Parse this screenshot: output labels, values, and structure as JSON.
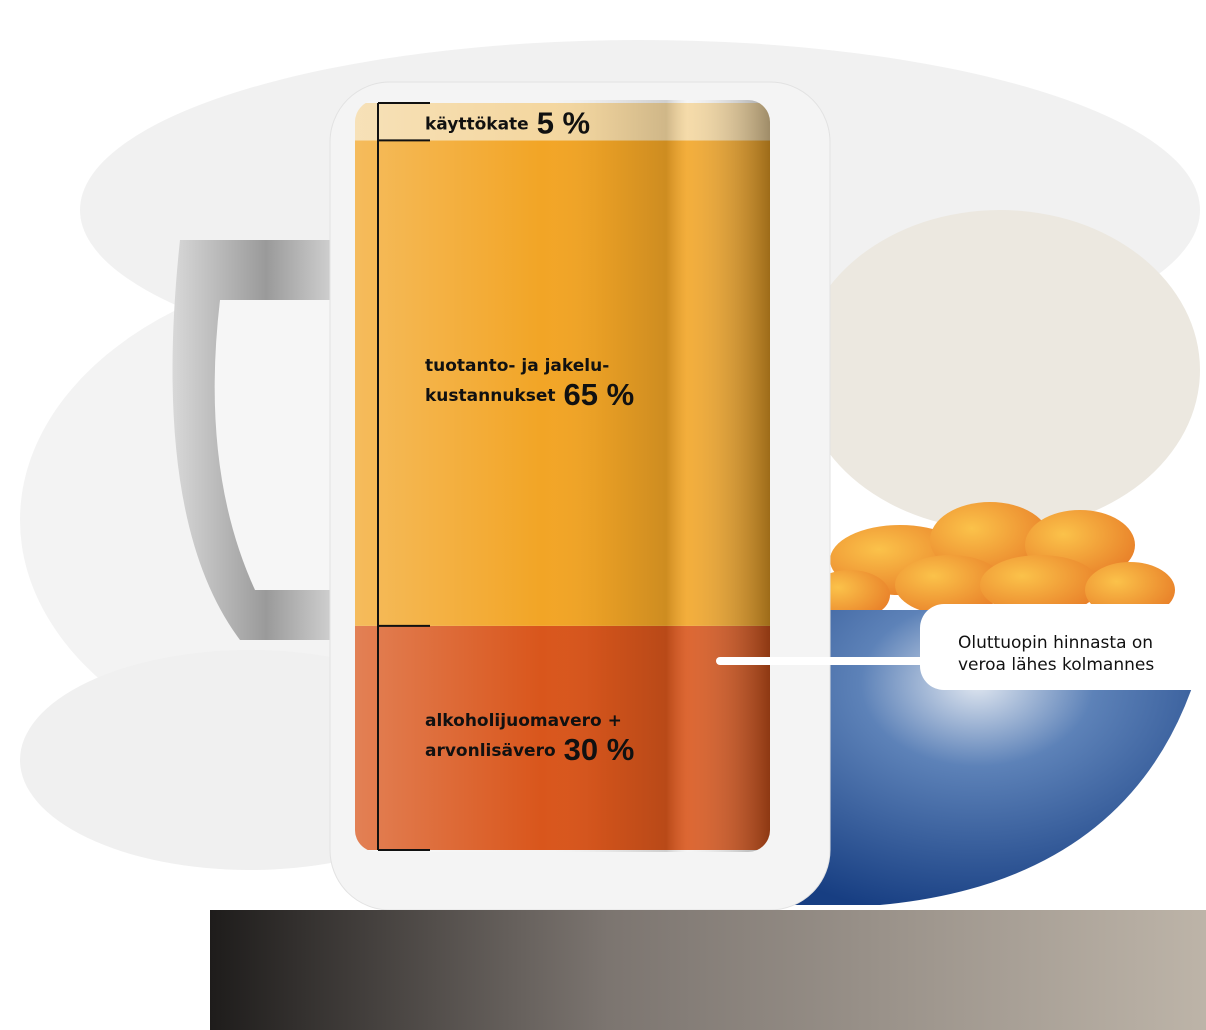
{
  "chart_data": {
    "type": "stacked-bar",
    "categories": [
      [
        "käyttökate"
      ],
      [
        "tuotanto- ja jakelu-",
        "kustannukset"
      ],
      [
        "alkoholijuomavero +",
        "arvonlisävero"
      ]
    ],
    "values": [
      5,
      65,
      30
    ],
    "value_labels": [
      "5 %",
      "65 %",
      "30 %"
    ],
    "colors": [
      "#f4d7a0",
      "#f2a526",
      "#d9561c"
    ],
    "callout": [
      "Oluttuopin hinnasta on",
      "veroa lähes kolmannes"
    ]
  }
}
